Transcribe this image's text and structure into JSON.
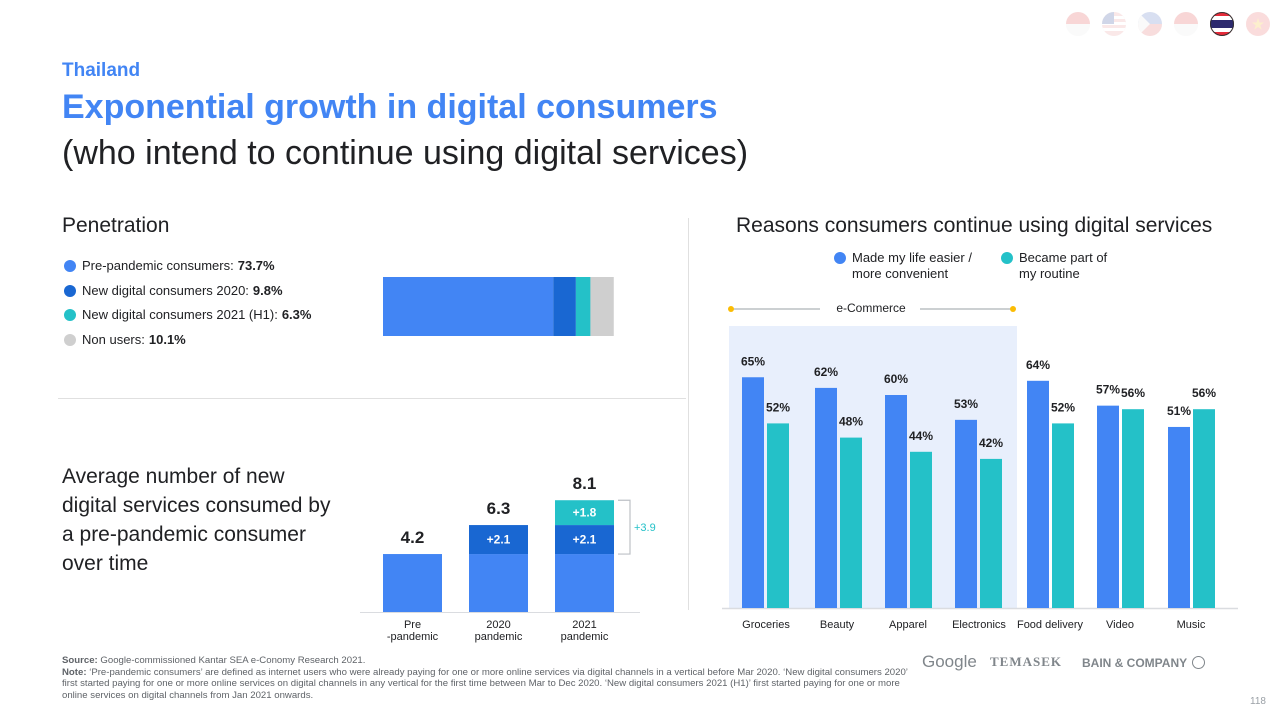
{
  "header": {
    "eyebrow": "Thailand",
    "title": "Exponential growth in digital consumers",
    "subtitle": "(who intend to continue using digital services)"
  },
  "flags": [
    "indonesia-flag-icon",
    "malaysia-flag-icon",
    "philippines-flag-icon",
    "singapore-flag-icon",
    "thailand-flag-icon",
    "vietnam-flag-icon"
  ],
  "colors": {
    "blue": "#4285f4",
    "dark_blue": "#1967d2",
    "teal": "#24c1c8",
    "gray": "#cfcfcf",
    "ecommerce_bg": "#e8effc",
    "orange": "#fbbc04"
  },
  "penetration": {
    "heading": "Penetration",
    "legend": [
      {
        "label": "Pre-pandemic consumers:",
        "value": "73.7%"
      },
      {
        "label": "New digital consumers 2020:",
        "value": "9.8%"
      },
      {
        "label": "New digital consumers 2021 (H1):",
        "value": "6.3%"
      },
      {
        "label": "Non users:",
        "value": "10.1%"
      }
    ]
  },
  "average": {
    "text": "Average number of new digital services consumed by a pre-pandemic consumer over time",
    "bracket_label": "+3.9"
  },
  "reasons": {
    "heading": "Reasons consumers continue using digital services",
    "legend_a": "Made my life easier / more convenient",
    "legend_b": "Became part of my routine",
    "ecommerce_label": "e-Commerce"
  },
  "chart_data": [
    {
      "type": "bar",
      "title": "Penetration",
      "orientation": "horizontal-stacked",
      "series": [
        {
          "name": "Pre-pandemic consumers",
          "values": [
            73.7
          ]
        },
        {
          "name": "New digital consumers 2020",
          "values": [
            9.8
          ]
        },
        {
          "name": "New digital consumers 2021 (H1)",
          "values": [
            6.3
          ]
        },
        {
          "name": "Non users",
          "values": [
            10.1
          ]
        }
      ],
      "xlim": [
        0,
        100
      ]
    },
    {
      "type": "bar",
      "orientation": "vertical-stacked",
      "categories": [
        "Pre\n-pandemic",
        "2020\npandemic",
        "2021\npandemic"
      ],
      "totals": [
        "4.2",
        "6.3",
        "8.1"
      ],
      "series": [
        {
          "values": [
            4.2,
            4.2,
            4.2
          ],
          "labels": [
            "",
            "",
            ""
          ]
        },
        {
          "values": [
            0,
            2.1,
            2.1
          ],
          "labels": [
            "",
            "+2.1",
            "+2.1"
          ]
        },
        {
          "values": [
            0,
            0,
            1.8
          ],
          "labels": [
            "",
            "",
            "+1.8"
          ]
        }
      ],
      "ylim": [
        0,
        9.6
      ]
    },
    {
      "type": "bar",
      "title": "Reasons consumers continue using digital services",
      "categories": [
        "Groceries",
        "Beauty",
        "Apparel",
        "Electronics",
        "Food delivery",
        "Video",
        "Music"
      ],
      "series": [
        {
          "name": "Made my life easier / more convenient",
          "values": [
            65,
            62,
            60,
            53,
            64,
            57,
            51
          ]
        },
        {
          "name": "Became part of my routine",
          "values": [
            52,
            48,
            44,
            42,
            52,
            56,
            56
          ]
        }
      ],
      "ylim": [
        0,
        85
      ],
      "group_label": "e-Commerce",
      "group_categories": [
        "Groceries",
        "Beauty",
        "Apparel",
        "Electronics"
      ]
    }
  ],
  "footer": {
    "source_label": "Source:",
    "source_text": "Google-commissioned Kantar SEA e-Conomy Research 2021.",
    "note_label": "Note:",
    "note_text": "‘Pre-pandemic consumers’ are defined as internet users who were already paying for one or more online services via digital channels in a vertical before Mar 2020. ‘New digital consumers 2020’ first started paying for one or more online services on digital channels in any vertical for the first time between Mar to Dec 2020. ‘New digital consumers 2021 (H1)’ first started paying for one or more online services on digital channels from Jan 2021 onwards.",
    "logo_google": "Google",
    "logo_temasek": "TEMASEK",
    "logo_bain": "BAIN & COMPANY",
    "page_number": "118"
  }
}
